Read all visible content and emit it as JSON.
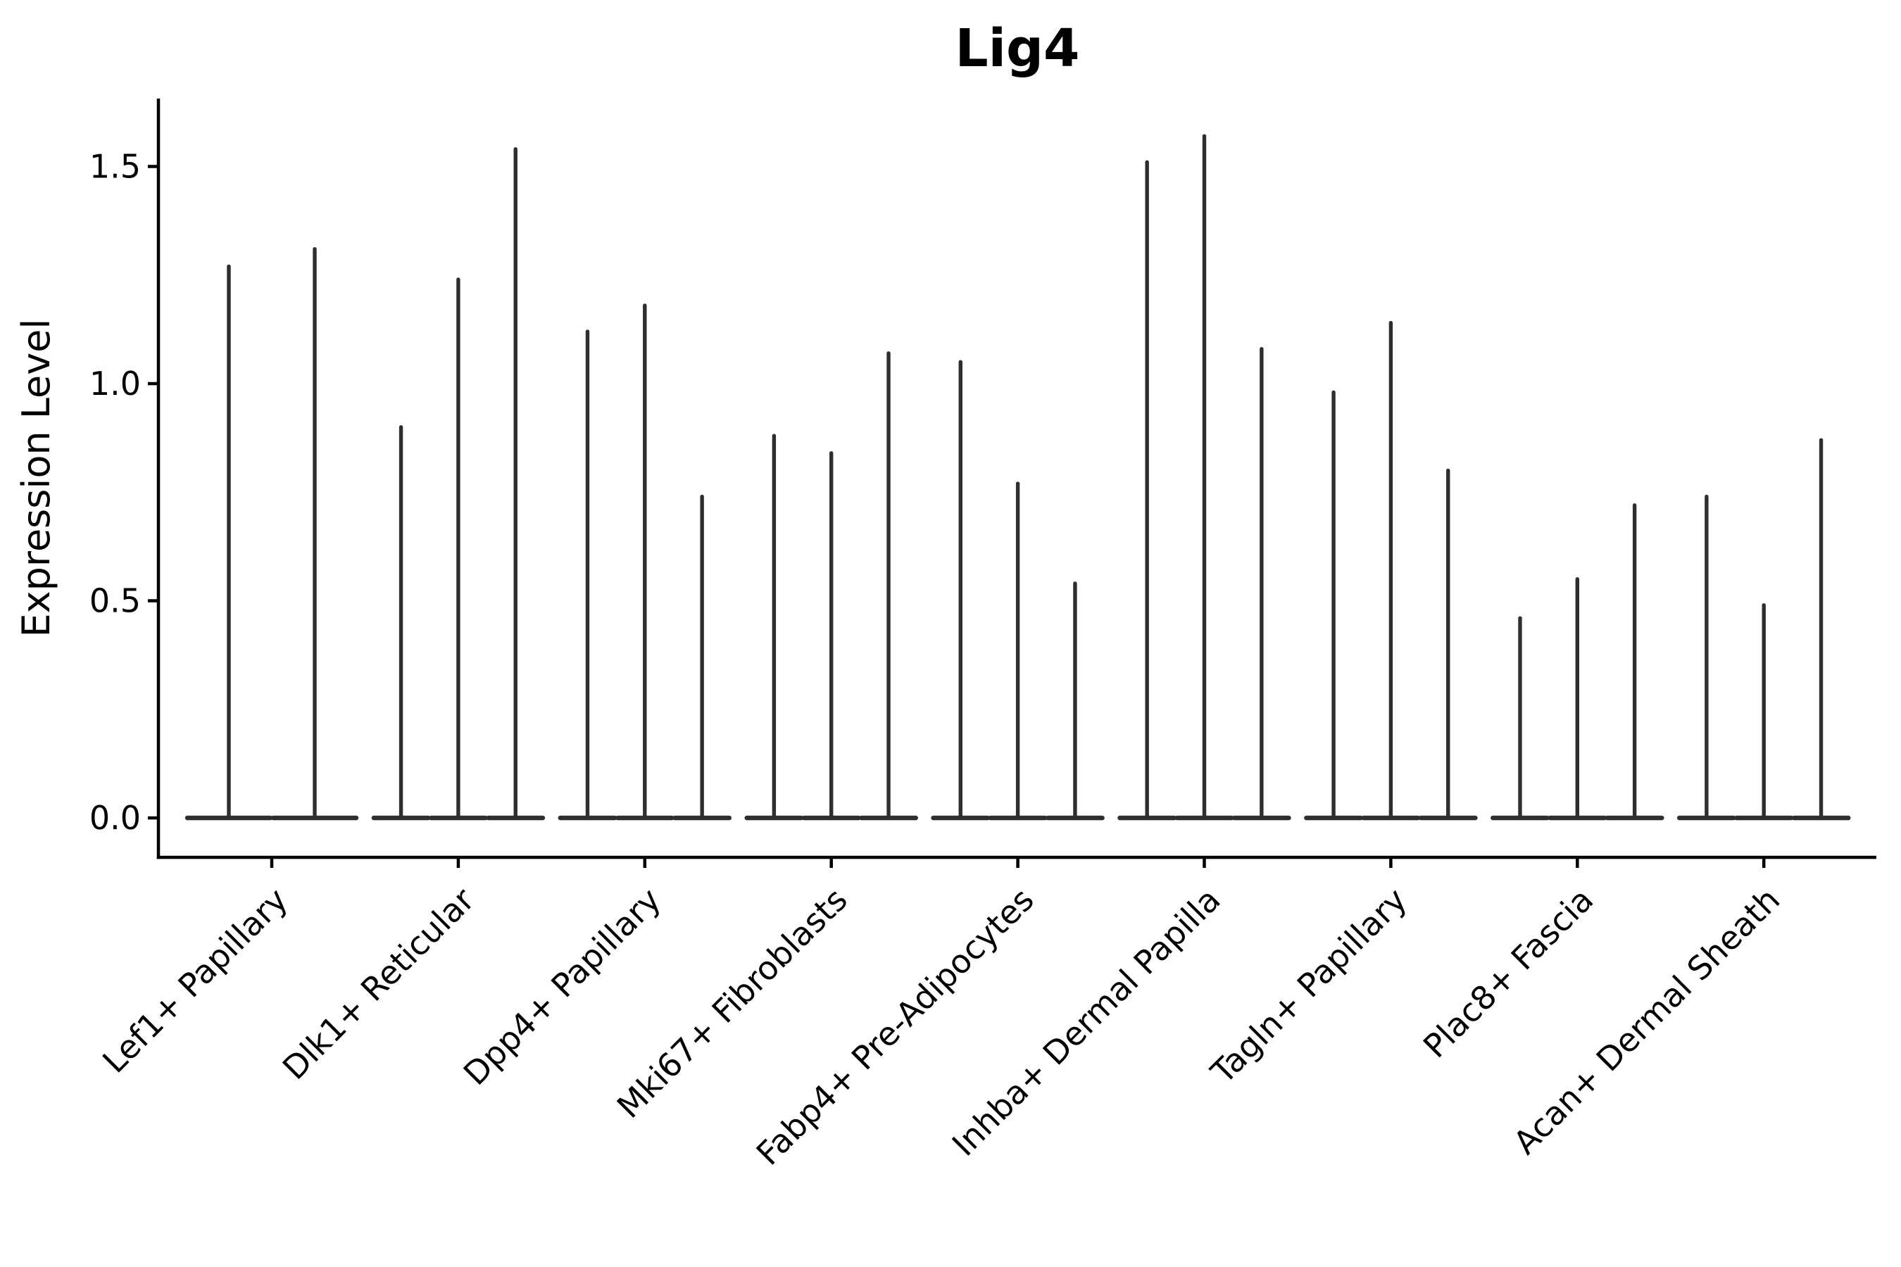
{
  "figure": {
    "title": "Lig4",
    "background": "#ffffff"
  },
  "chart_data": {
    "type": "violin",
    "title": "Lig4",
    "xlabel": "",
    "ylabel": "Expression Level",
    "categories": [
      "Lef1+ Papillary",
      "Dlk1+ Reticular",
      "Dpp4+ Papillary",
      "Mki67+ Fibroblasts",
      "Fabp4+ Pre-Adipocytes",
      "Inhba+ Dermal Papilla",
      "Tagln+ Papillary",
      "Plac8+ Fascia",
      "Acan+ Dermal Sheath"
    ],
    "yticks": [
      "0.0",
      "0.5",
      "1.0",
      "1.5"
    ],
    "ytick_values": [
      0,
      0.5,
      1.0,
      1.5
    ],
    "ylim": [
      -0.09,
      1.66
    ],
    "grid": false,
    "legend": "none",
    "violin_style": "each violin is a density mass flattened at 0 with a thin vertical spike reaching its maximum expression value",
    "series": [
      {
        "category": "Lef1+ Papillary",
        "spike_maxima": [
          1.27,
          1.31
        ]
      },
      {
        "category": "Dlk1+ Reticular",
        "spike_maxima": [
          0.9,
          1.24,
          1.54
        ]
      },
      {
        "category": "Dpp4+ Papillary",
        "spike_maxima": [
          1.12,
          1.18,
          0.74
        ]
      },
      {
        "category": "Mki67+ Fibroblasts",
        "spike_maxima": [
          0.88,
          0.84,
          1.07
        ]
      },
      {
        "category": "Fabp4+ Pre-Adipocytes",
        "spike_maxima": [
          1.05,
          0.77,
          0.54
        ]
      },
      {
        "category": "Inhba+ Dermal Papilla",
        "spike_maxima": [
          1.51,
          1.57,
          1.08
        ]
      },
      {
        "category": "Tagln+ Papillary",
        "spike_maxima": [
          0.98,
          1.14,
          0.8
        ]
      },
      {
        "category": "Plac8+ Fascia",
        "spike_maxima": [
          0.46,
          0.55,
          0.72
        ]
      },
      {
        "category": "Acan+ Dermal Sheath",
        "spike_maxima": [
          0.74,
          0.49,
          0.87
        ]
      }
    ],
    "colors": {
      "violin": "#2e2e2e",
      "spine": "#000000",
      "text": "#000000"
    }
  }
}
